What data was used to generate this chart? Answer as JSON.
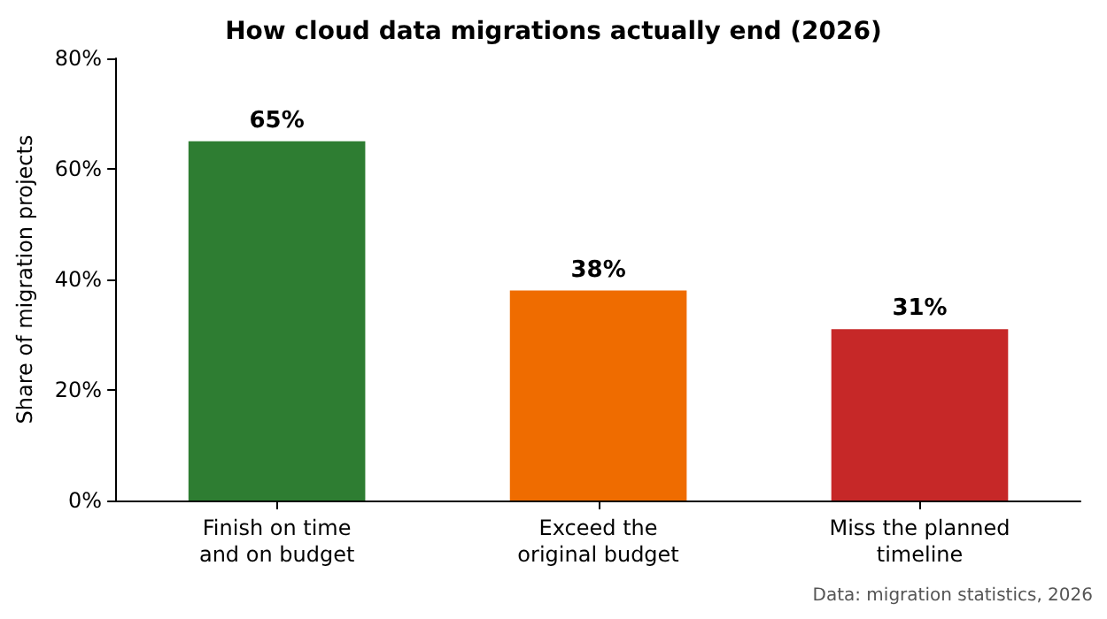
{
  "chart_data": {
    "type": "bar",
    "title": "How cloud data migrations actually end (2026)",
    "ylabel": "Share of migration projects",
    "categories": [
      "Finish on time\nand on budget",
      "Exceed the\noriginal budget",
      "Miss the planned\ntimeline"
    ],
    "values": [
      65,
      38,
      31
    ],
    "colors": [
      "#2e7d32",
      "#ef6c00",
      "#c62828"
    ],
    "value_labels": [
      "65%",
      "38%",
      "31%"
    ],
    "ylim": [
      0,
      80
    ],
    "yticks": [
      {
        "value": 0,
        "label": "0%"
      },
      {
        "value": 20,
        "label": "20%"
      },
      {
        "value": 40,
        "label": "40%"
      },
      {
        "value": 60,
        "label": "60%"
      },
      {
        "value": 80,
        "label": "80%"
      }
    ],
    "annotations": [
      "Data: migration statistics, 2026"
    ]
  }
}
